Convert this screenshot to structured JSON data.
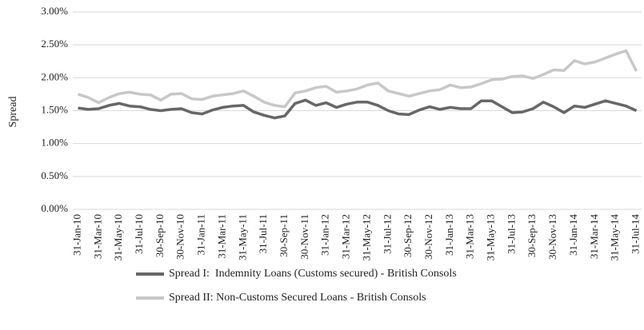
{
  "chart_data": {
    "type": "line",
    "y_label": "Spread",
    "categories": [
      "31-Jan-10",
      null,
      "31-Mar-10",
      null,
      "31-May-10",
      null,
      "31-Jul-10",
      null,
      "30-Sep-10",
      null,
      "30-Nov-10",
      null,
      "31-Jan-11",
      null,
      "31-Mar-11",
      null,
      "31-May-11",
      null,
      "31-Jul-11",
      null,
      "30-Sep-11",
      null,
      "30-Nov-11",
      null,
      "31-Jan-12",
      null,
      "31-Mar-12",
      null,
      "31-May-12",
      null,
      "31-Jul-12",
      null,
      "30-Sep-12",
      null,
      "30-Nov-12",
      null,
      "31-Jan-13",
      null,
      "31-Mar-13",
      null,
      "31-May-13",
      null,
      "31-Jul-13",
      null,
      "30-Sep-13",
      null,
      "30-Nov-13",
      null,
      "31-Jan-14",
      null,
      "31-Mar-14",
      null,
      "31-May-14",
      null,
      "31-Jul-14"
    ],
    "series": [
      {
        "name": "Spread I:  Indemnity Loans (Customs secured) - British Consols",
        "color": "#676767",
        "values": [
          1.54,
          1.52,
          1.53,
          1.58,
          1.61,
          1.57,
          1.56,
          1.52,
          1.5,
          1.52,
          1.53,
          1.47,
          1.45,
          1.51,
          1.55,
          1.57,
          1.58,
          1.48,
          1.43,
          1.39,
          1.42,
          1.61,
          1.66,
          1.58,
          1.62,
          1.55,
          1.6,
          1.63,
          1.63,
          1.58,
          1.5,
          1.45,
          1.44,
          1.51,
          1.56,
          1.52,
          1.55,
          1.53,
          1.53,
          1.65,
          1.65,
          1.56,
          1.47,
          1.48,
          1.53,
          1.63,
          1.56,
          1.47,
          1.57,
          1.55,
          1.6,
          1.65,
          1.61,
          1.57,
          1.5
        ]
      },
      {
        "name": "Spread II: Non-Customs Secured Loans - British Consols",
        "color": "#c8c8c8",
        "values": [
          1.75,
          1.7,
          1.62,
          1.7,
          1.76,
          1.78,
          1.75,
          1.74,
          1.66,
          1.75,
          1.76,
          1.68,
          1.67,
          1.72,
          1.74,
          1.76,
          1.8,
          1.72,
          1.63,
          1.58,
          1.56,
          1.77,
          1.8,
          1.85,
          1.87,
          1.78,
          1.8,
          1.83,
          1.89,
          1.92,
          1.8,
          1.76,
          1.72,
          1.76,
          1.8,
          1.82,
          1.89,
          1.85,
          1.86,
          1.91,
          1.97,
          1.98,
          2.02,
          2.03,
          1.99,
          2.05,
          2.12,
          2.11,
          2.26,
          2.21,
          2.24,
          2.3,
          2.36,
          2.41,
          2.1
        ]
      }
    ],
    "ylim": [
      0,
      3
    ],
    "yticks": [
      {
        "value": 0,
        "label": "0.00%"
      },
      {
        "value": 0.5,
        "label": "0.50%"
      },
      {
        "value": 1,
        "label": "1.00%"
      },
      {
        "value": 1.5,
        "label": "1.50%"
      },
      {
        "value": 2,
        "label": "2.00%"
      },
      {
        "value": 2.5,
        "label": "2.50%"
      },
      {
        "value": 3,
        "label": "3.00%"
      }
    ],
    "grid": true,
    "legend": "bottom"
  }
}
